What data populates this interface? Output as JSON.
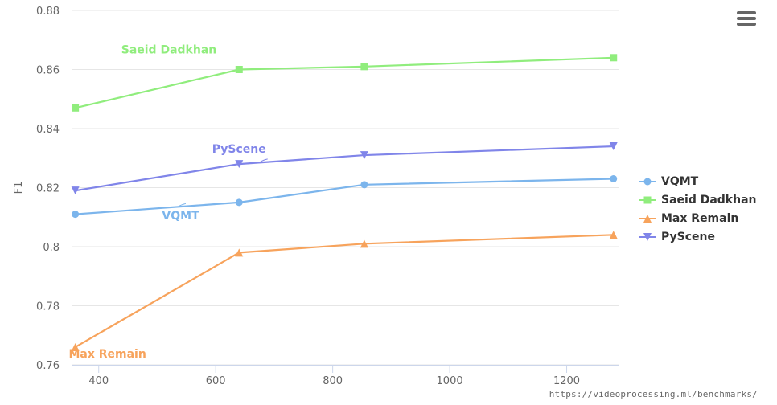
{
  "chart_data": {
    "type": "line",
    "ylabel": "F1",
    "xlabel": "",
    "xlim": [
      355,
      1290
    ],
    "ylim": [
      0.76,
      0.88
    ],
    "x_ticks": [
      400,
      600,
      800,
      1000,
      1200
    ],
    "x_tick_labels": [
      "400",
      "600",
      "800",
      "1000",
      "1200"
    ],
    "y_ticks": [
      0.76,
      0.78,
      0.8,
      0.82,
      0.84,
      0.86,
      0.88
    ],
    "y_tick_labels": [
      "0.76",
      "0.78",
      "0.8",
      "0.82",
      "0.84",
      "0.86",
      "0.88"
    ],
    "grid": true,
    "legend_position": "right",
    "series": [
      {
        "name": "VQMT",
        "color": "#7cb5ec",
        "marker": "circle",
        "x": [
          360,
          640,
          854,
          1280
        ],
        "values": [
          0.811,
          0.815,
          0.821,
          0.823
        ],
        "label": "VQMT"
      },
      {
        "name": "Saeid Dadkhan",
        "color": "#90ed7d",
        "marker": "square",
        "x": [
          360,
          640,
          854,
          1280
        ],
        "values": [
          0.847,
          0.86,
          0.861,
          0.864
        ],
        "label": "Saeid Dadkhan"
      },
      {
        "name": "Max Remain",
        "color": "#f7a35c",
        "marker": "triangle",
        "x": [
          360,
          640,
          854,
          1280
        ],
        "values": [
          0.766,
          0.798,
          0.801,
          0.804
        ],
        "label": "Max Remain"
      },
      {
        "name": "PyScene",
        "color": "#8085e9",
        "marker": "triangle-down",
        "x": [
          360,
          640,
          854,
          1280
        ],
        "values": [
          0.819,
          0.828,
          0.831,
          0.834
        ],
        "label": "PyScene"
      }
    ]
  },
  "credit_text": "https://videoprocessing.ml/benchmarks/",
  "menu_icon": "hamburger-menu-icon"
}
